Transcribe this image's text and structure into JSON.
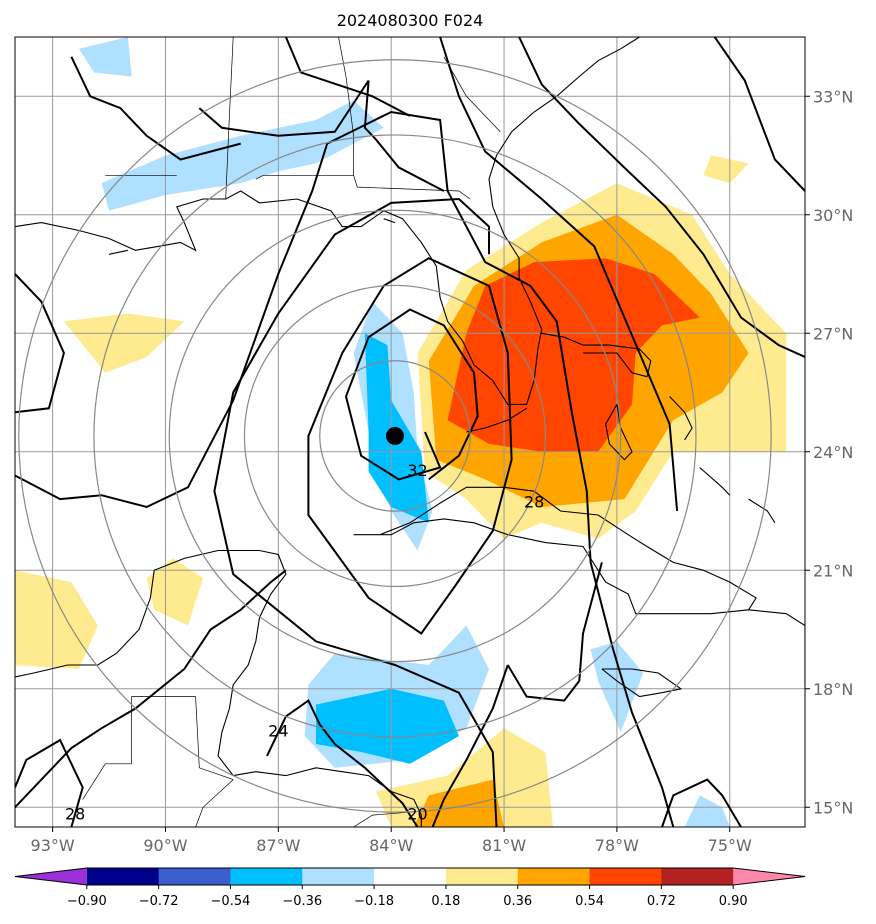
{
  "chart_data": {
    "type": "heatmap",
    "title": "2024080300 F024",
    "projection": "map",
    "lon_range": [
      -94,
      -73
    ],
    "lat_range": [
      14.5,
      34.5
    ],
    "x_ticks": [
      -93,
      -90,
      -87,
      -84,
      -81,
      -78,
      -75
    ],
    "x_tick_labels": [
      "93°W",
      "90°W",
      "87°W",
      "84°W",
      "81°W",
      "78°W",
      "75°W"
    ],
    "y_ticks": [
      15,
      18,
      21,
      24,
      27,
      30,
      33
    ],
    "y_tick_labels": [
      "15°N",
      "18°N",
      "21°N",
      "24°N",
      "27°N",
      "30°N",
      "33°N"
    ],
    "y_tick_side": "right",
    "grid": true,
    "colorbar": {
      "orientation": "horizontal",
      "extend": "both",
      "levels": [
        -1.08,
        -0.9,
        -0.72,
        -0.54,
        -0.36,
        -0.18,
        0.18,
        0.36,
        0.54,
        0.72,
        0.9,
        1.08
      ],
      "tick_values": [
        -0.9,
        -0.72,
        -0.54,
        -0.36,
        -0.18,
        0.18,
        0.36,
        0.54,
        0.72,
        0.9
      ],
      "tick_labels": [
        "−0.90",
        "−0.72",
        "−0.54",
        "−0.36",
        "−0.18",
        "0.18",
        "0.36",
        "0.54",
        "0.72",
        "0.90"
      ],
      "colors": [
        "#9b30d9",
        "#00008b",
        "#3a5fcd",
        "#00bfff",
        "#b0e0ff",
        "#ffffff",
        "#ffeb8f",
        "#ffa500",
        "#ff4500",
        "#b22222",
        "#ff88aa"
      ]
    },
    "center_marker": {
      "lon": -83.9,
      "lat": 24.4
    },
    "range_rings_deg": [
      2,
      4,
      6,
      8,
      10
    ],
    "contour_labels": [
      {
        "text": "32",
        "lon": -83.3,
        "lat": 23.5
      },
      {
        "text": "28",
        "lon": -80.2,
        "lat": 22.7
      },
      {
        "text": "24",
        "lon": -87.0,
        "lat": 16.9
      },
      {
        "text": "20",
        "lon": -83.3,
        "lat": 14.8
      },
      {
        "text": "28",
        "lon": -92.4,
        "lat": 14.8
      }
    ],
    "shaded_regions": [
      {
        "value": 0.27,
        "polygon": [
          [
            -83.1,
            23.5
          ],
          [
            -83.3,
            26.5
          ],
          [
            -82.0,
            28.6
          ],
          [
            -80.0,
            29.8
          ],
          [
            -78.0,
            30.8
          ],
          [
            -76.0,
            30.0
          ],
          [
            -75.0,
            28.5
          ],
          [
            -73.5,
            27.0
          ],
          [
            -73.5,
            24.0
          ],
          [
            -76.5,
            24.0
          ],
          [
            -77.5,
            22.5
          ],
          [
            -78.5,
            21.8
          ],
          [
            -80.0,
            22.2
          ],
          [
            -81.0,
            21.8
          ],
          [
            -82.0,
            22.8
          ]
        ]
      },
      {
        "value": 0.45,
        "polygon": [
          [
            -82.8,
            23.8
          ],
          [
            -83.0,
            26.3
          ],
          [
            -81.8,
            28.2
          ],
          [
            -80.0,
            29.3
          ],
          [
            -78.0,
            30.0
          ],
          [
            -76.5,
            29.0
          ],
          [
            -75.5,
            28.0
          ],
          [
            -74.5,
            26.5
          ],
          [
            -75.2,
            25.5
          ],
          [
            -76.5,
            24.8
          ],
          [
            -77.8,
            22.8
          ],
          [
            -80.0,
            22.6
          ],
          [
            -81.5,
            23.3
          ]
        ]
      },
      {
        "value": 0.63,
        "polygon": [
          [
            -82.5,
            24.8
          ],
          [
            -82.0,
            27.0
          ],
          [
            -81.5,
            28.2
          ],
          [
            -80.2,
            28.8
          ],
          [
            -78.3,
            28.9
          ],
          [
            -77.0,
            28.5
          ],
          [
            -75.8,
            27.4
          ],
          [
            -76.8,
            27.2
          ],
          [
            -77.5,
            26.5
          ],
          [
            -77.6,
            25.2
          ],
          [
            -78.5,
            24.0
          ],
          [
            -80.0,
            24.0
          ],
          [
            -81.4,
            24.2
          ]
        ]
      },
      {
        "value": -0.27,
        "polygon": [
          [
            -85.0,
            26.5
          ],
          [
            -84.5,
            27.8
          ],
          [
            -83.7,
            27.0
          ],
          [
            -83.4,
            25.5
          ],
          [
            -83.3,
            24.0
          ],
          [
            -82.9,
            22.5
          ],
          [
            -83.3,
            21.5
          ],
          [
            -84.0,
            22.5
          ],
          [
            -84.5,
            24.0
          ]
        ]
      },
      {
        "value": -0.45,
        "polygon": [
          [
            -84.6,
            24.5
          ],
          [
            -84.7,
            27.0
          ],
          [
            -84.1,
            26.7
          ],
          [
            -84.0,
            25.3
          ],
          [
            -83.2,
            24.0
          ],
          [
            -83.0,
            22.2
          ],
          [
            -84.0,
            22.6
          ],
          [
            -84.6,
            23.5
          ]
        ]
      },
      {
        "value": -0.27,
        "polygon": [
          [
            -86.2,
            18.1
          ],
          [
            -85.5,
            18.9
          ],
          [
            -83.0,
            18.6
          ],
          [
            -82.0,
            19.6
          ],
          [
            -81.4,
            18.5
          ],
          [
            -82.0,
            17.0
          ],
          [
            -83.5,
            16.2
          ],
          [
            -85.5,
            16.0
          ],
          [
            -86.3,
            16.8
          ]
        ]
      },
      {
        "value": -0.45,
        "polygon": [
          [
            -86.0,
            17.6
          ],
          [
            -84.0,
            18.0
          ],
          [
            -82.6,
            17.7
          ],
          [
            -82.2,
            16.8
          ],
          [
            -83.5,
            16.1
          ],
          [
            -84.8,
            16.4
          ],
          [
            -86.0,
            16.6
          ]
        ]
      },
      {
        "value": -0.27,
        "polygon": [
          [
            -91.7,
            30.8
          ],
          [
            -90.0,
            31.5
          ],
          [
            -88.0,
            32.0
          ],
          [
            -86.0,
            32.4
          ],
          [
            -85.0,
            32.9
          ],
          [
            -84.2,
            32.2
          ],
          [
            -86.0,
            31.3
          ],
          [
            -87.0,
            31.1
          ],
          [
            -88.0,
            30.8
          ],
          [
            -90.0,
            30.5
          ],
          [
            -91.5,
            30.1
          ]
        ]
      },
      {
        "value": -0.27,
        "polygon": [
          [
            -92.3,
            34.2
          ],
          [
            -91.0,
            34.5
          ],
          [
            -90.9,
            33.5
          ],
          [
            -91.9,
            33.6
          ]
        ]
      },
      {
        "value": -0.27,
        "polygon": [
          [
            -78.7,
            19.0
          ],
          [
            -78.5,
            18.2
          ],
          [
            -77.9,
            16.9
          ],
          [
            -77.3,
            18.4
          ],
          [
            -78.0,
            19.2
          ]
        ]
      },
      {
        "value": -0.27,
        "polygon": [
          [
            -75.2,
            15.0
          ],
          [
            -75.0,
            14.5
          ],
          [
            -76.2,
            14.5
          ],
          [
            -75.8,
            15.3
          ]
        ]
      },
      {
        "value": 0.27,
        "polygon": [
          [
            -92.7,
            27.3
          ],
          [
            -91.6,
            26.0
          ],
          [
            -90.5,
            26.4
          ],
          [
            -89.5,
            27.3
          ],
          [
            -91.0,
            27.5
          ]
        ]
      },
      {
        "value": 0.27,
        "polygon": [
          [
            -94.0,
            21.0
          ],
          [
            -92.5,
            20.7
          ],
          [
            -91.8,
            19.6
          ],
          [
            -92.3,
            18.5
          ],
          [
            -94.0,
            18.6
          ]
        ]
      },
      {
        "value": 0.27,
        "polygon": [
          [
            -89.8,
            21.3
          ],
          [
            -89.0,
            20.8
          ],
          [
            -89.4,
            19.6
          ],
          [
            -90.3,
            20.0
          ],
          [
            -90.5,
            20.8
          ]
        ]
      },
      {
        "value": 0.27,
        "polygon": [
          [
            -84.4,
            15.4
          ],
          [
            -82.5,
            15.8
          ],
          [
            -81.0,
            17.0
          ],
          [
            -79.9,
            16.4
          ],
          [
            -79.7,
            14.5
          ],
          [
            -84.0,
            14.5
          ]
        ]
      },
      {
        "value": 0.45,
        "polygon": [
          [
            -83.0,
            15.3
          ],
          [
            -81.3,
            15.7
          ],
          [
            -81.0,
            14.5
          ],
          [
            -83.4,
            14.5
          ]
        ]
      },
      {
        "value": 0.27,
        "polygon": [
          [
            -75.5,
            31.5
          ],
          [
            -74.5,
            31.3
          ],
          [
            -75.0,
            30.8
          ],
          [
            -75.7,
            31.0
          ]
        ]
      }
    ]
  }
}
